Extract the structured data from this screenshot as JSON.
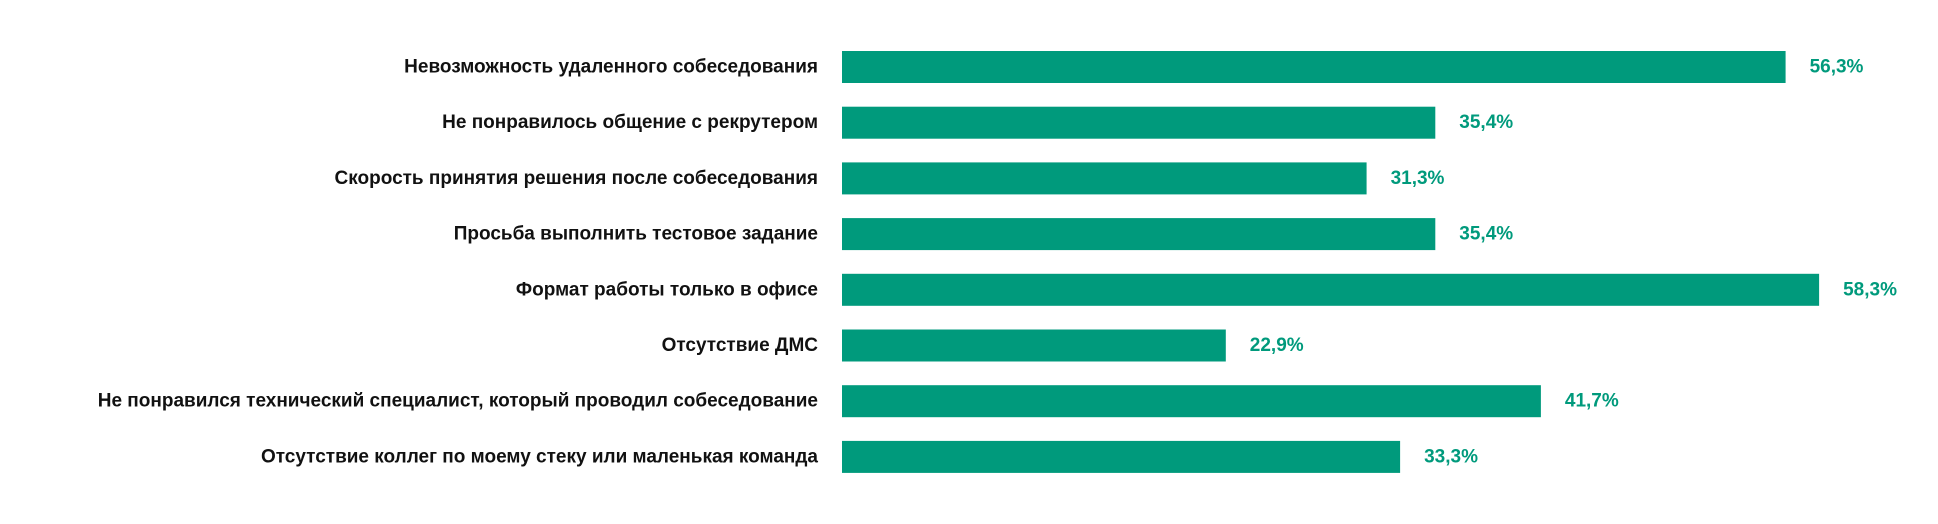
{
  "chart_data": {
    "type": "bar",
    "orientation": "horizontal",
    "categories": [
      "Невозможность удаленного собеседования",
      "Не понравилось общение с рекрутером",
      "Скорость принятия решения после собеседования",
      "Просьба выполнить тестовое задание",
      "Формат работы только в офисе",
      "Отсутствие ДМС",
      "Не понравился технический специалист, который проводил собеседование",
      "Отсутствие коллег по моему стеку или маленькая команда"
    ],
    "values": [
      56.3,
      35.4,
      31.3,
      35.4,
      58.3,
      22.9,
      41.7,
      33.3
    ],
    "value_labels": [
      "56,3%",
      "35,4%",
      "31,3%",
      "35,4%",
      "58,3%",
      "22,9%",
      "41,7%",
      "33,3%"
    ],
    "title": "",
    "xlabel": "",
    "ylabel": "",
    "grid": false,
    "legend": "none",
    "colors": {
      "bar": "#009a7c",
      "value_label": "#009a7c",
      "category_label": "#111111"
    }
  }
}
